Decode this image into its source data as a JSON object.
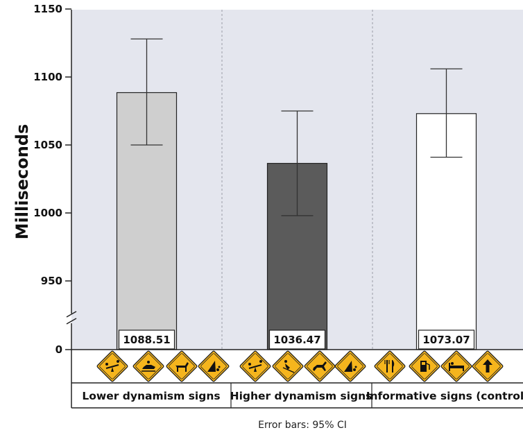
{
  "chart_data": {
    "type": "bar",
    "title": "",
    "xlabel": "",
    "ylabel": "Milliseconds",
    "y_axis_break": true,
    "ylim": [
      900,
      1150
    ],
    "yticks": [
      950,
      1000,
      1050,
      1100,
      1150
    ],
    "baseline_tick": "0",
    "categories": [
      "Lower dynamism signs",
      "Higher dynamism signs",
      "Informative signs (control)"
    ],
    "values": [
      1088.51,
      1036.47,
      1073.07
    ],
    "value_labels": [
      "1088.51",
      "1036.47",
      "1073.07"
    ],
    "error_bars": [
      {
        "low": 1050,
        "high": 1128
      },
      {
        "low": 998,
        "high": 1075
      },
      {
        "low": 1041,
        "high": 1106
      }
    ],
    "bar_colors": [
      "#cfcfcf",
      "#5b5b5b",
      "#ffffff"
    ],
    "plot_background": "#e4e6ee",
    "sign_color": "#f5b51d",
    "sign_icons": [
      [
        "seesaw-sign-icon",
        "snowmobile-sign-icon",
        "horse-sign-icon",
        "landslide-sign-icon"
      ],
      [
        "seesaw-sign-icon",
        "skier-sign-icon",
        "running-horse-sign-icon",
        "landslide-sign-icon"
      ],
      [
        "restaurant-sign-icon",
        "gas-station-sign-icon",
        "lodging-sign-icon",
        "arrow-up-sign-icon"
      ]
    ],
    "footnote": "Error bars: 95% CI",
    "grid": false
  }
}
